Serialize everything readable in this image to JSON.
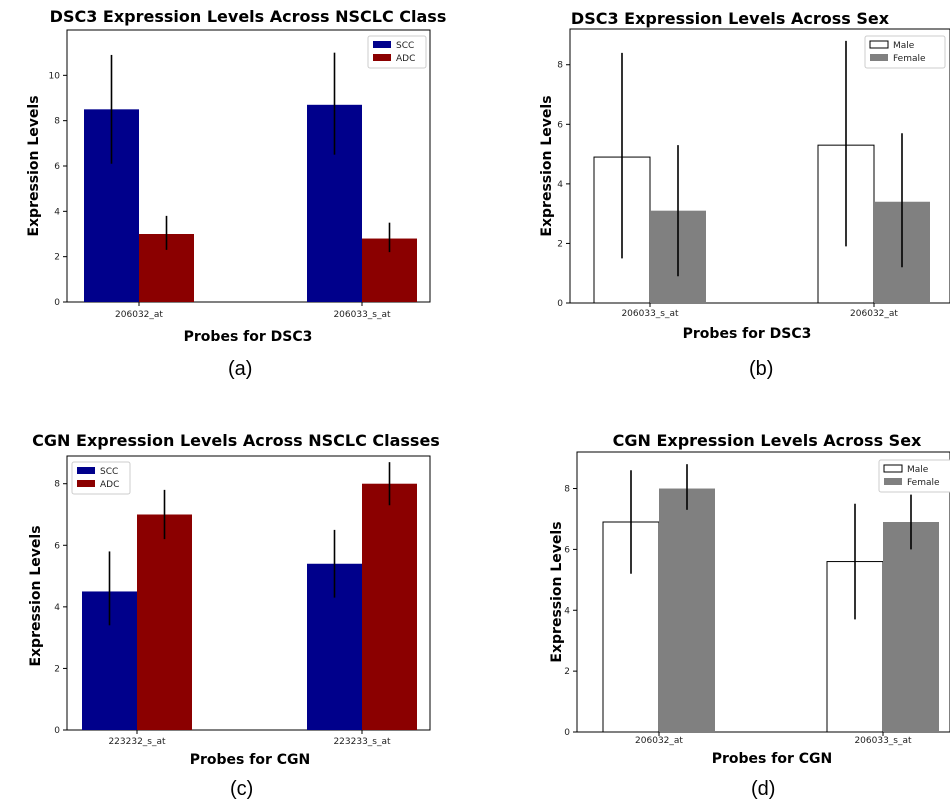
{
  "chart_data": [
    {
      "type": "bar",
      "title": "DSC3 Expression Levels Across NSCLC Class",
      "xlabel": "Probes for DSC3",
      "ylabel": "Expression Levels",
      "categories": [
        "206032_at",
        "206033_s_at"
      ],
      "series": [
        {
          "name": "SCC",
          "color": "#00008b",
          "values": [
            8.5,
            8.7
          ],
          "err_low": [
            6.1,
            6.5
          ],
          "err_high": [
            10.9,
            11.0
          ]
        },
        {
          "name": "ADC",
          "color": "#8b0000",
          "values": [
            3.0,
            2.8
          ],
          "err_low": [
            2.3,
            2.2
          ],
          "err_high": [
            3.8,
            3.5
          ]
        }
      ],
      "ylim": [
        0,
        12
      ],
      "yticks": [
        0,
        2,
        4,
        6,
        8,
        10
      ],
      "legend": "top-right",
      "grid": false,
      "caption": "(a)"
    },
    {
      "type": "bar",
      "title": "DSC3 Expression Levels Across Sex",
      "xlabel": "Probes for DSC3",
      "ylabel": "Expression Levels",
      "categories": [
        "206033_s_at",
        "206032_at"
      ],
      "series": [
        {
          "name": "Male",
          "color": "#ffffff",
          "values": [
            4.9,
            5.3
          ],
          "err_low": [
            1.5,
            1.9
          ],
          "err_high": [
            8.4,
            8.8
          ]
        },
        {
          "name": "Female",
          "color": "#808080",
          "values": [
            3.1,
            3.4
          ],
          "err_low": [
            0.9,
            1.2
          ],
          "err_high": [
            5.3,
            5.7
          ]
        }
      ],
      "ylim": [
        0,
        9.2
      ],
      "yticks": [
        0,
        2,
        4,
        6,
        8
      ],
      "legend": "top-right",
      "grid": false,
      "caption": "(b)"
    },
    {
      "type": "bar",
      "title": "CGN Expression Levels Across NSCLC Classes",
      "xlabel": "Probes for CGN",
      "ylabel": "Expression Levels",
      "categories": [
        "223232_s_at",
        "223233_s_at"
      ],
      "series": [
        {
          "name": "SCC",
          "color": "#00008b",
          "values": [
            4.5,
            5.4
          ],
          "err_low": [
            3.4,
            4.3
          ],
          "err_high": [
            5.8,
            6.5
          ]
        },
        {
          "name": "ADC",
          "color": "#8b0000",
          "values": [
            7.0,
            8.0
          ],
          "err_low": [
            6.2,
            7.3
          ],
          "err_high": [
            7.8,
            8.7
          ]
        }
      ],
      "ylim": [
        0,
        8.9
      ],
      "yticks": [
        0,
        2,
        4,
        6,
        8
      ],
      "legend": "top-left",
      "grid": false,
      "caption": "(c)"
    },
    {
      "type": "bar",
      "title": "CGN Expression Levels Across Sex",
      "xlabel": "Probes for CGN",
      "ylabel": "Expression Levels",
      "categories": [
        "206032_at",
        "206033_s_at"
      ],
      "series": [
        {
          "name": "Male",
          "color": "#ffffff",
          "values": [
            6.9,
            5.6
          ],
          "err_low": [
            5.2,
            3.7
          ],
          "err_high": [
            8.6,
            7.5
          ]
        },
        {
          "name": "Female",
          "color": "#808080",
          "values": [
            8.0,
            6.9
          ],
          "err_low": [
            7.3,
            6.0
          ],
          "err_high": [
            8.8,
            7.8
          ]
        }
      ],
      "ylim": [
        0,
        9.2
      ],
      "yticks": [
        0,
        2,
        4,
        6,
        8
      ],
      "legend": "top-right",
      "grid": false,
      "caption": "(d)"
    }
  ]
}
